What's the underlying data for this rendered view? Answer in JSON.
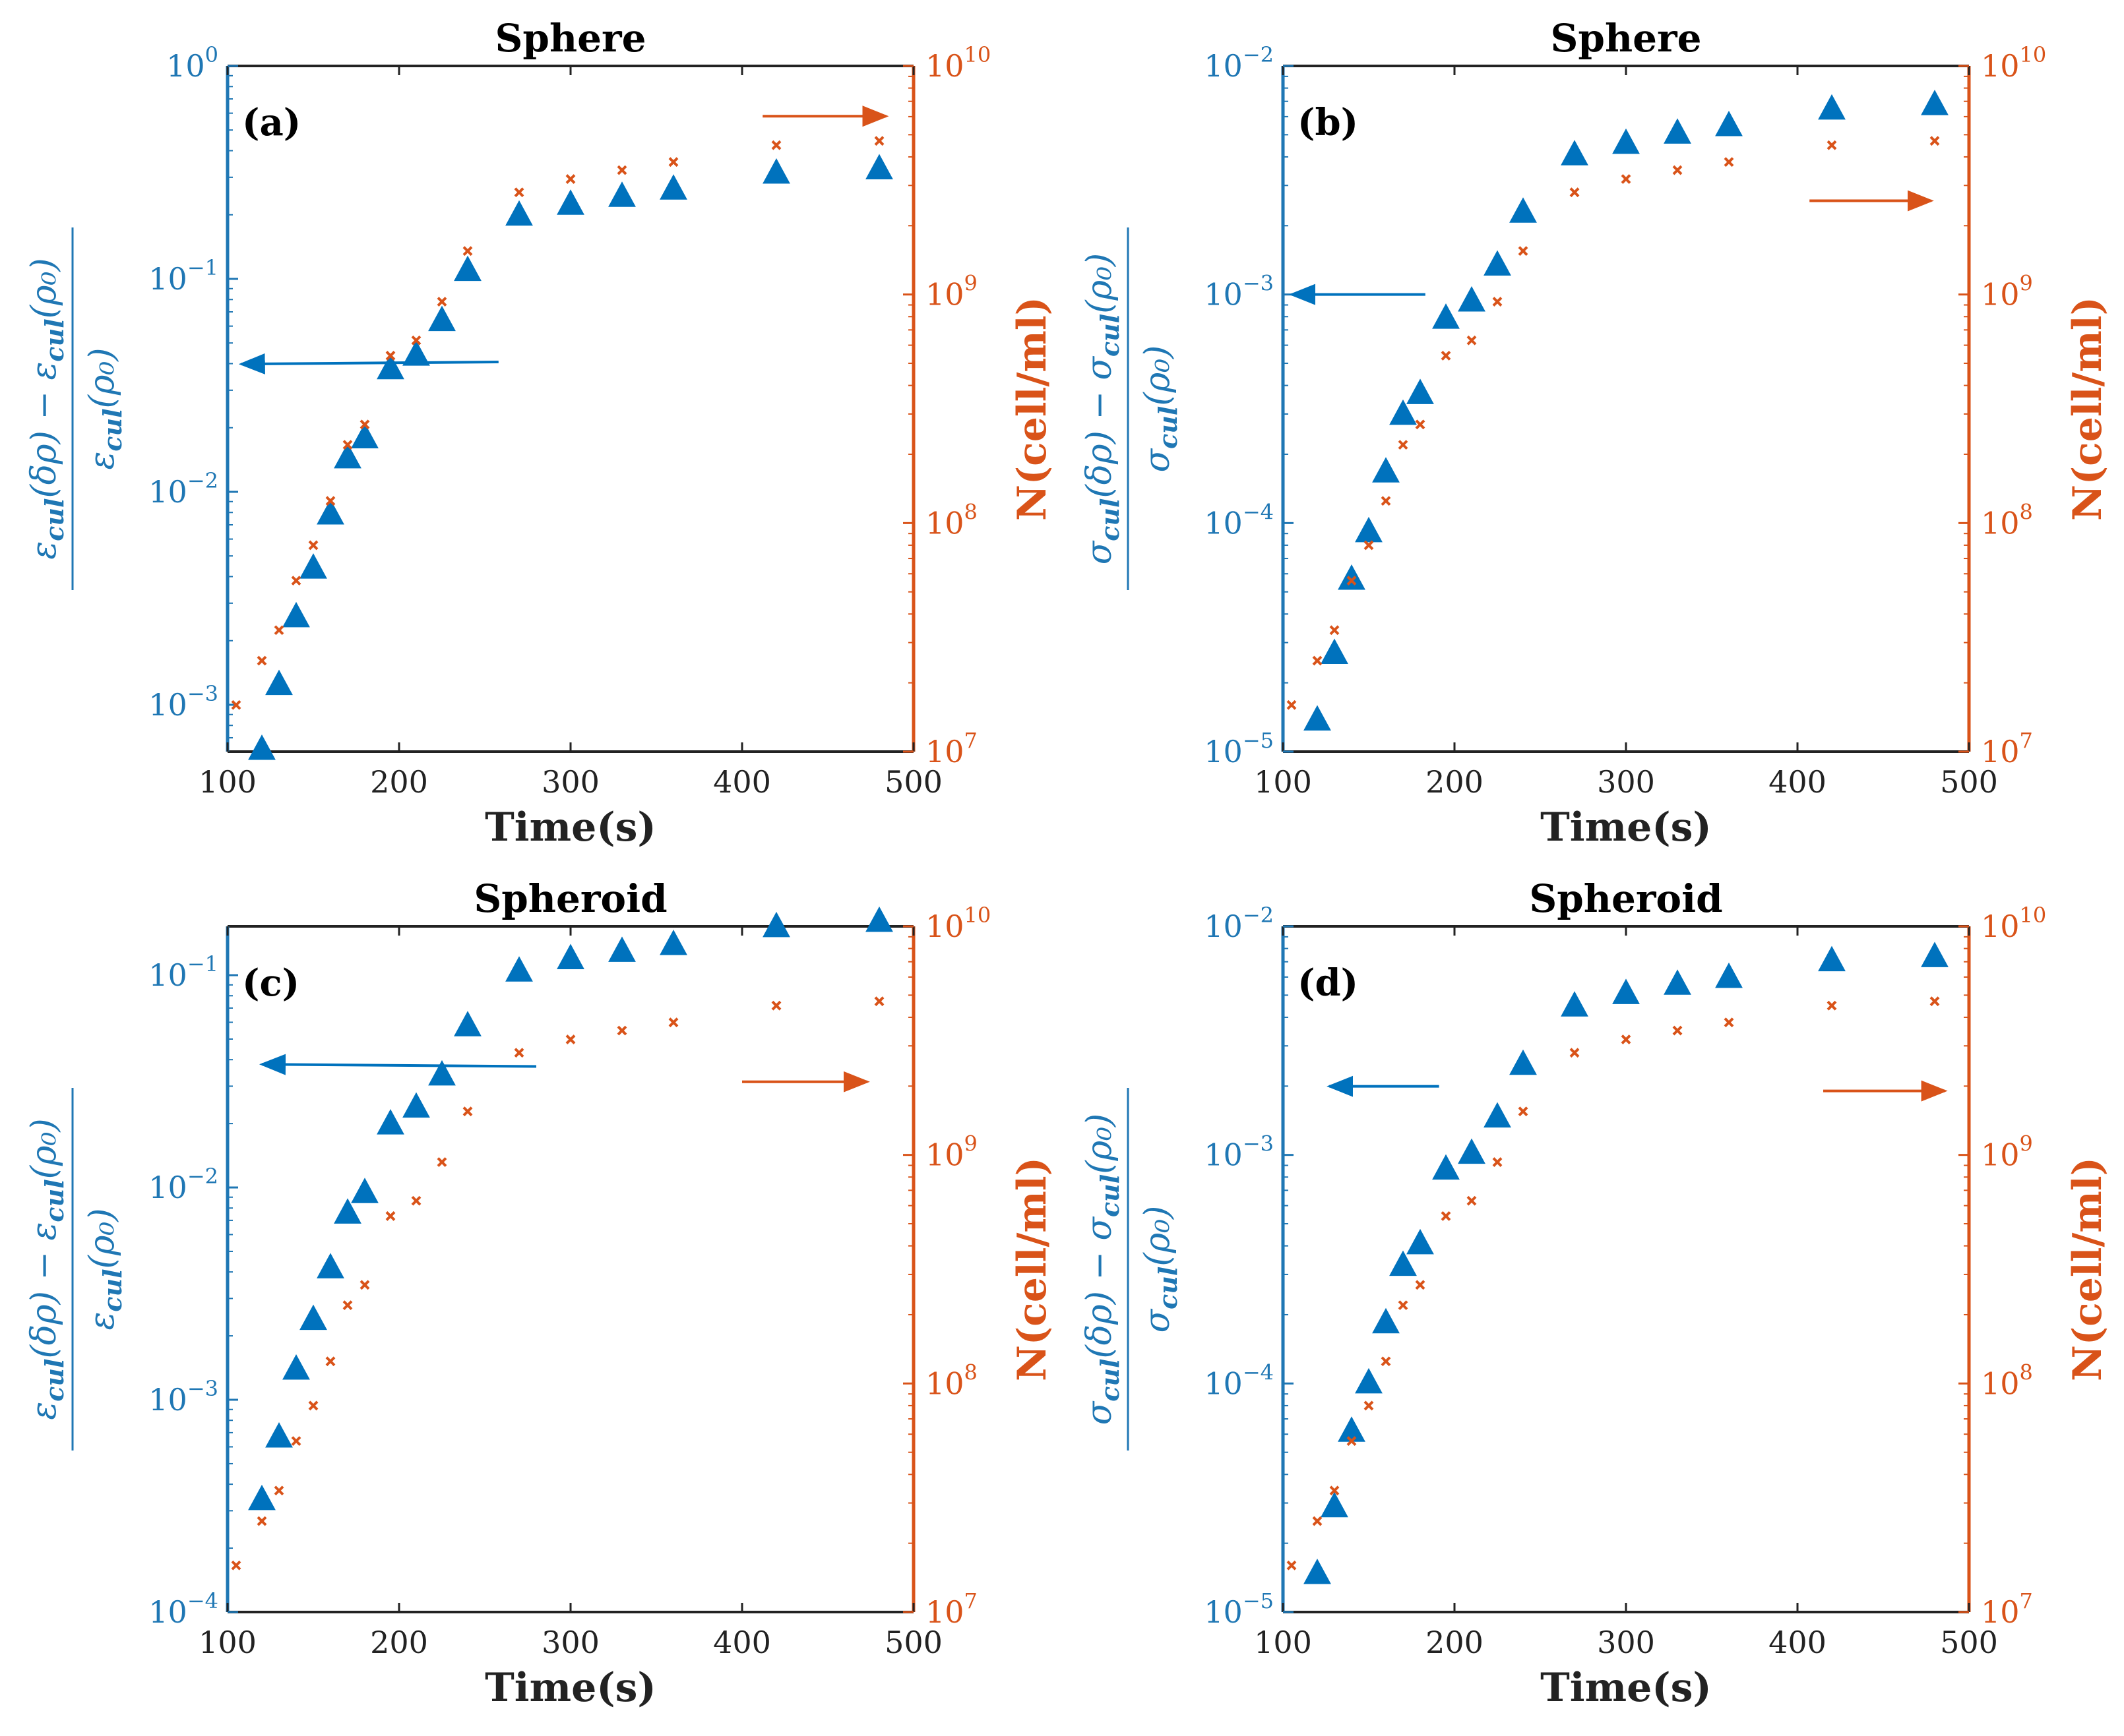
{
  "chart_data": [
    {
      "type": "scatter",
      "title": "Sphere",
      "panel_label": "(a)",
      "xlabel": "Time(s)",
      "ylabel_left": {
        "sym": "ε",
        "sub": "cul",
        "num_mid": "(δρ) − ",
        "arg": "(ρ₀)"
      },
      "ylabel_right": "N(cell/ml)",
      "xlim": [
        100,
        500
      ],
      "ylim_left_log": [
        -3.22,
        0
      ],
      "ylim_right_log": [
        7,
        10
      ],
      "xticks": [
        "100",
        "200",
        "300",
        "400",
        "500"
      ],
      "yticks_left": [
        {
          "e": "0",
          "v": 0
        },
        {
          "e": "-1",
          "v": -1
        },
        {
          "e": "-2",
          "v": -2
        },
        {
          "e": "-3",
          "v": -3
        }
      ],
      "yticks_right": [
        {
          "e": "7",
          "v": 7
        },
        {
          "e": "8",
          "v": 8
        },
        {
          "e": "9",
          "v": 9
        },
        {
          "e": "10",
          "v": 10
        }
      ],
      "left_arrow": {
        "x1": 258,
        "y1": -1.39,
        "x2": 108,
        "y2": -1.4
      },
      "right_arrow": {
        "x1": 412,
        "y1": 9.78,
        "x2": 484,
        "y2": 9.78
      },
      "series": [
        {
          "marker": "triangle",
          "axis": "left",
          "x": [
            120,
            130,
            140,
            150,
            160,
            170,
            180,
            195,
            210,
            225,
            240,
            270,
            300,
            330,
            360,
            420,
            480
          ],
          "y": [
            0.00062,
            0.00125,
            0.0026,
            0.0044,
            0.0079,
            0.0145,
            0.018,
            0.038,
            0.044,
            0.064,
            0.11,
            0.2,
            0.225,
            0.245,
            0.265,
            0.315,
            0.33
          ]
        },
        {
          "marker": "cross",
          "axis": "right",
          "x": [
            105,
            120,
            130,
            140,
            150,
            160,
            170,
            180,
            195,
            210,
            225,
            240,
            270,
            300,
            330,
            360,
            420,
            480
          ],
          "y": [
            16000000,
            25000000,
            34000000,
            56000000,
            80000000,
            125000000,
            220000000,
            270000000,
            540000000,
            630000000,
            930000000,
            1550000000,
            2800000000,
            3200000000,
            3500000000,
            3800000000,
            4500000000,
            4700000000
          ]
        }
      ]
    },
    {
      "type": "scatter",
      "title": "Sphere",
      "panel_label": "(b)",
      "xlabel": "Time(s)",
      "ylabel_left": {
        "sym": "σ",
        "sub": "cul",
        "num_mid": "(δρ) − ",
        "arg": "(ρ₀)"
      },
      "ylabel_right": "N(cell/ml)",
      "xlim": [
        100,
        500
      ],
      "ylim_left_log": [
        -5,
        -2
      ],
      "ylim_right_log": [
        7,
        10
      ],
      "xticks": [
        "100",
        "200",
        "300",
        "400",
        "500"
      ],
      "yticks_left": [
        {
          "e": "-2",
          "v": -2
        },
        {
          "e": "-3",
          "v": -3
        },
        {
          "e": "-4",
          "v": -4
        },
        {
          "e": "-5",
          "v": -5
        }
      ],
      "yticks_right": [
        {
          "e": "7",
          "v": 7
        },
        {
          "e": "8",
          "v": 8
        },
        {
          "e": "9",
          "v": 9
        },
        {
          "e": "10",
          "v": 10
        }
      ],
      "left_arrow": {
        "x1": 183,
        "y1": -3.0,
        "x2": 105,
        "y2": -3.0
      },
      "right_arrow": {
        "x1": 407,
        "y1": 9.41,
        "x2": 478,
        "y2": 9.41
      },
      "series": [
        {
          "marker": "triangle",
          "axis": "left",
          "x": [
            120,
            130,
            140,
            150,
            160,
            170,
            180,
            195,
            210,
            225,
            240,
            270,
            300,
            330,
            360,
            420,
            480
          ],
          "y": [
            1.38e-05,
            2.7e-05,
            5.7e-05,
            9.2e-05,
            0.000168,
            0.0003,
            0.00037,
            0.00079,
            0.00094,
            0.00135,
            0.0023,
            0.0041,
            0.0046,
            0.0051,
            0.0055,
            0.0065,
            0.0068
          ]
        },
        {
          "marker": "cross",
          "axis": "right",
          "x": [
            105,
            120,
            130,
            140,
            150,
            160,
            170,
            180,
            195,
            210,
            225,
            240,
            270,
            300,
            330,
            360,
            420,
            480
          ],
          "y": [
            16000000,
            25000000,
            34000000,
            56000000,
            80000000,
            125000000,
            220000000,
            270000000,
            540000000,
            630000000,
            930000000,
            1550000000,
            2800000000,
            3200000000,
            3500000000,
            3800000000,
            4500000000,
            4700000000
          ]
        }
      ]
    },
    {
      "type": "scatter",
      "title": "Spheroid",
      "panel_label": "(c)",
      "xlabel": "Time(s)",
      "ylabel_left": {
        "sym": "ε",
        "sub": "cul",
        "num_mid": "(δρ) − ",
        "arg": "(ρ₀)"
      },
      "ylabel_right": "N(cell/ml)",
      "xlim": [
        100,
        500
      ],
      "ylim_left_log": [
        -4,
        -0.77
      ],
      "ylim_right_log": [
        7,
        10
      ],
      "xticks": [
        "100",
        "200",
        "300",
        "400",
        "500"
      ],
      "yticks_left": [
        {
          "e": "-1",
          "v": -1
        },
        {
          "e": "-2",
          "v": -2
        },
        {
          "e": "-3",
          "v": -3
        },
        {
          "e": "-4",
          "v": -4
        }
      ],
      "yticks_right": [
        {
          "e": "7",
          "v": 7
        },
        {
          "e": "8",
          "v": 8
        },
        {
          "e": "9",
          "v": 9
        },
        {
          "e": "10",
          "v": 10
        }
      ],
      "left_arrow": {
        "x1": 280,
        "y1": -1.43,
        "x2": 120,
        "y2": -1.42
      },
      "right_arrow": {
        "x1": 400,
        "y1": 9.32,
        "x2": 473,
        "y2": 9.32
      },
      "series": [
        {
          "marker": "triangle",
          "axis": "left",
          "x": [
            120,
            130,
            140,
            150,
            160,
            170,
            180,
            195,
            210,
            225,
            240,
            270,
            300,
            330,
            360,
            420,
            480
          ],
          "y": [
            0.00034,
            0.00067,
            0.0014,
            0.0024,
            0.0042,
            0.0076,
            0.0095,
            0.02,
            0.024,
            0.034,
            0.058,
            0.105,
            0.12,
            0.13,
            0.14,
            0.17,
            0.18
          ]
        },
        {
          "marker": "cross",
          "axis": "right",
          "x": [
            105,
            120,
            130,
            140,
            150,
            160,
            170,
            180,
            195,
            210,
            225,
            240,
            270,
            300,
            330,
            360,
            420,
            480
          ],
          "y": [
            16000000,
            25000000,
            34000000,
            56000000,
            80000000,
            125000000,
            220000000,
            270000000,
            540000000,
            630000000,
            930000000,
            1550000000,
            2800000000,
            3200000000,
            3500000000,
            3800000000,
            4500000000,
            4700000000
          ]
        }
      ]
    },
    {
      "type": "scatter",
      "title": "Spheroid",
      "panel_label": "(d)",
      "xlabel": "Time(s)",
      "ylabel_left": {
        "sym": "σ",
        "sub": "cul",
        "num_mid": "(δρ) − ",
        "arg": "(ρ₀)"
      },
      "ylabel_right": "N(cell/ml)",
      "xlim": [
        100,
        500
      ],
      "ylim_left_log": [
        -5,
        -2
      ],
      "ylim_right_log": [
        7,
        10
      ],
      "xticks": [
        "100",
        "200",
        "300",
        "400",
        "500"
      ],
      "yticks_left": [
        {
          "e": "-2",
          "v": -2
        },
        {
          "e": "-3",
          "v": -3
        },
        {
          "e": "-4",
          "v": -4
        },
        {
          "e": "-5",
          "v": -5
        }
      ],
      "yticks_right": [
        {
          "e": "7",
          "v": 7
        },
        {
          "e": "8",
          "v": 8
        },
        {
          "e": "9",
          "v": 9
        },
        {
          "e": "10",
          "v": 10
        }
      ],
      "left_arrow": {
        "x1": 191,
        "y1": -2.7,
        "x2": 127,
        "y2": -2.7
      },
      "right_arrow": {
        "x1": 415,
        "y1": 9.28,
        "x2": 486,
        "y2": 9.28
      },
      "series": [
        {
          "marker": "triangle",
          "axis": "left",
          "x": [
            120,
            130,
            140,
            150,
            160,
            170,
            180,
            195,
            210,
            225,
            240,
            270,
            300,
            330,
            360,
            420,
            480
          ],
          "y": [
            1.48e-05,
            2.9e-05,
            6.2e-05,
            0.000101,
            0.000185,
            0.00033,
            0.00041,
            0.00087,
            0.00102,
            0.00147,
            0.0025,
            0.0045,
            0.0051,
            0.0056,
            0.006,
            0.0071,
            0.0074
          ]
        },
        {
          "marker": "cross",
          "axis": "right",
          "x": [
            105,
            120,
            130,
            140,
            150,
            160,
            170,
            180,
            195,
            210,
            225,
            240,
            270,
            300,
            330,
            360,
            420,
            480
          ],
          "y": [
            16000000,
            25000000,
            34000000,
            56000000,
            80000000,
            125000000,
            220000000,
            270000000,
            540000000,
            630000000,
            930000000,
            1550000000,
            2800000000,
            3200000000,
            3500000000,
            3800000000,
            4500000000,
            4700000000
          ]
        }
      ]
    }
  ],
  "colors": {
    "left_series": "#0072BD",
    "right_series": "#D95319",
    "left_axis": "#1f77b4",
    "right_axis": "#d95319"
  }
}
